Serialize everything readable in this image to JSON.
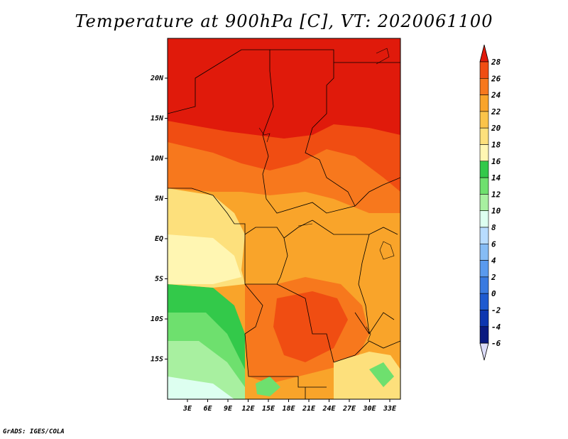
{
  "title": "Temperature at 900hPa [C], VT: 2020061100",
  "credit": "GrADS: IGES/COLA",
  "map": {
    "lat_ticks": [
      "20N",
      "15N",
      "10N",
      "5N",
      "EQ",
      "5S",
      "10S",
      "15S"
    ],
    "lon_ticks": [
      "3E",
      "6E",
      "9E",
      "12E",
      "15E",
      "18E",
      "21E",
      "24E",
      "27E",
      "30E",
      "33E"
    ]
  },
  "colorbar": {
    "labels": [
      "28",
      "26",
      "24",
      "22",
      "20",
      "18",
      "16",
      "14",
      "12",
      "10",
      "8",
      "6",
      "4",
      "2",
      "0",
      "-2",
      "-4",
      "-6"
    ],
    "colors": [
      "#e01a0b",
      "#f04d12",
      "#f7781d",
      "#f9a42a",
      "#fbc449",
      "#fde07c",
      "#fff6b2",
      "#33c94a",
      "#6ee06e",
      "#a8f0a0",
      "#ddfff0",
      "#b8dcff",
      "#86bcf5",
      "#5a9aee",
      "#3a7ae0",
      "#1e5ad0",
      "#0d36b0",
      "#0a1a80"
    ],
    "top_arrow_color": "#e01a0b",
    "bottom_arrow_color": "#dcdcf8"
  }
}
